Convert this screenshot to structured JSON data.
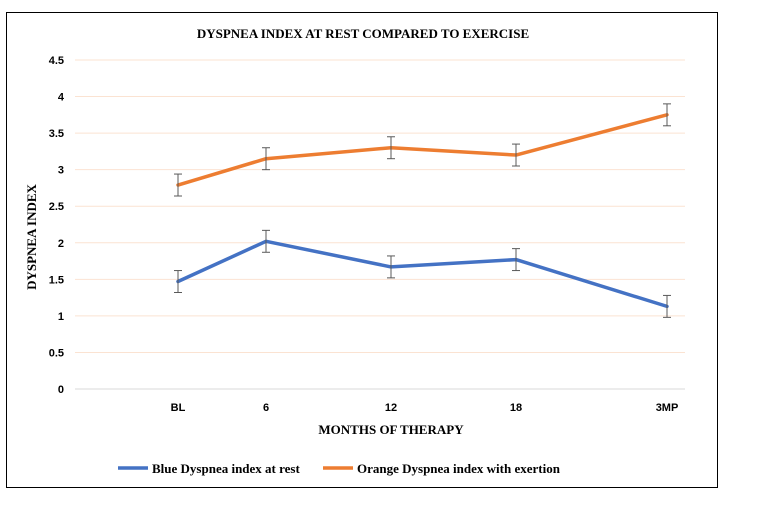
{
  "chart_data": {
    "type": "line",
    "title": "DYSPNEA INDEX AT REST COMPARED TO EXERCISE",
    "xlabel": "MONTHS OF THERAPY",
    "ylabel": "DYSPNEA INDEX",
    "categories": [
      "BL",
      "6",
      "12",
      "18",
      "3MP"
    ],
    "ylim": [
      0,
      4.5
    ],
    "yticks": [
      "0",
      "0.5",
      "1",
      "1.5",
      "2",
      "2.5",
      "3",
      "3.5",
      "4",
      "4.5"
    ],
    "grid": "horizontal",
    "legend_position": "bottom",
    "error_bars": true,
    "series": [
      {
        "name": "Blue Dyspnea index at rest",
        "color": "#4472C4",
        "values": [
          1.47,
          2.02,
          1.67,
          1.77,
          1.13
        ],
        "error": [
          0.15,
          0.15,
          0.15,
          0.15,
          0.15
        ]
      },
      {
        "name": "Orange Dyspnea index with exertion",
        "color": "#ED7D31",
        "values": [
          2.79,
          3.15,
          3.3,
          3.2,
          3.75
        ],
        "error": [
          0.15,
          0.15,
          0.15,
          0.15,
          0.15
        ]
      }
    ]
  }
}
